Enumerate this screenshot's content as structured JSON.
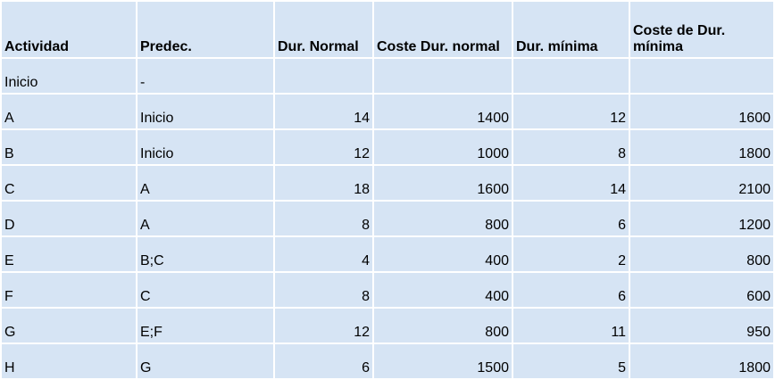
{
  "table": {
    "headers": [
      "Actividad",
      "Predec.",
      "Dur. Normal",
      "Coste Dur. normal",
      "Dur. mínima",
      "Coste de Dur. mínima"
    ],
    "rows": [
      [
        "Inicio",
        "-",
        "",
        "",
        "",
        ""
      ],
      [
        "A",
        "Inicio",
        "14",
        "1400",
        "12",
        "1600"
      ],
      [
        "B",
        "Inicio",
        "12",
        "1000",
        "8",
        "1800"
      ],
      [
        "C",
        "A",
        "18",
        "1600",
        "14",
        "2100"
      ],
      [
        "D",
        "A",
        "8",
        "800",
        "6",
        "1200"
      ],
      [
        "E",
        "B;C",
        "4",
        "400",
        "2",
        "800"
      ],
      [
        "F",
        "C",
        "8",
        "400",
        "6",
        "600"
      ],
      [
        "G",
        "E;F",
        "12",
        "800",
        "11",
        "950"
      ],
      [
        "H",
        "G",
        "6",
        "1500",
        "5",
        "1800"
      ]
    ]
  },
  "colors": {
    "cell_background": "#d6e4f4",
    "grid": "#ffffff"
  }
}
